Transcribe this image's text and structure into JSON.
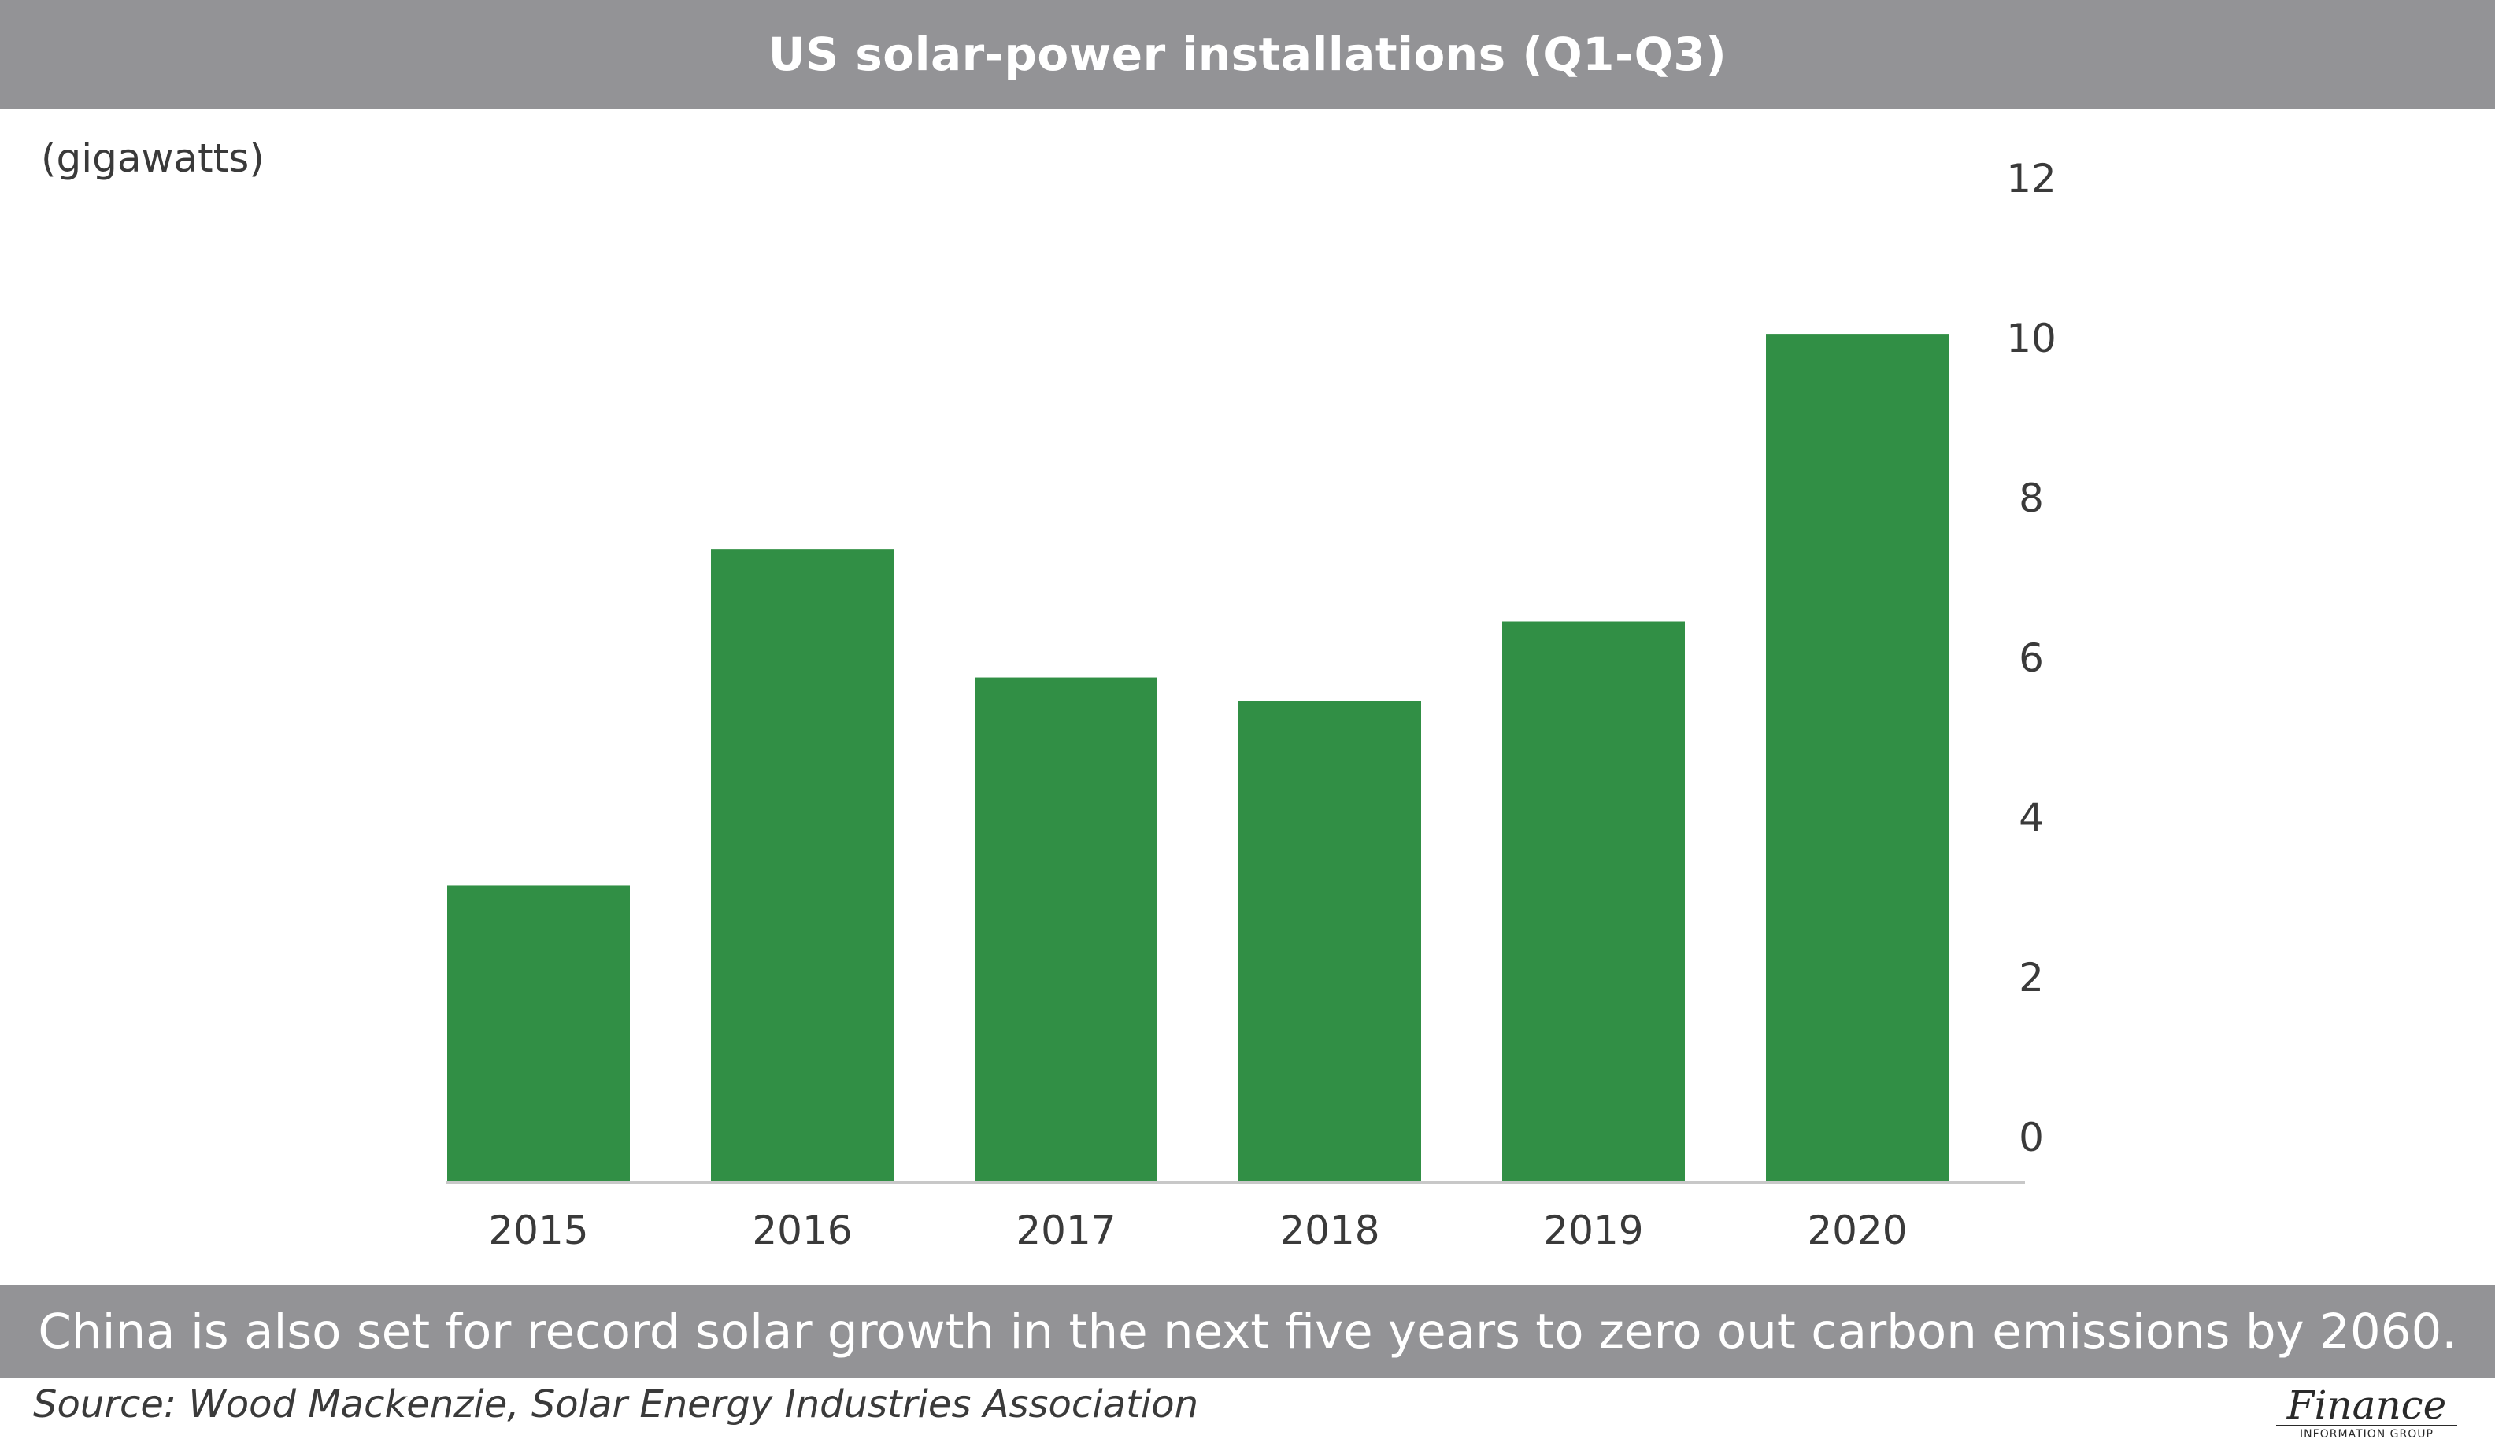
{
  "header": {
    "title": "US solar-power installations (Q1-Q3)"
  },
  "chart_data": {
    "type": "bar",
    "unit_label": "(gigawatts)",
    "categories": [
      "2015",
      "2016",
      "2017",
      "2018",
      "2019",
      "2020"
    ],
    "values": [
      3.7,
      7.9,
      6.3,
      6.0,
      7.0,
      10.6
    ],
    "ylim": [
      0,
      12
    ],
    "yticks": [
      0,
      2,
      4,
      6,
      8,
      10,
      12
    ],
    "y_axis_side": "right",
    "grid": false,
    "bar_color": "#318f45",
    "axis_color": "#c8c8c8"
  },
  "caption": {
    "text": "China is also set for record solar growth in the next five years to zero out carbon emissions by 2060."
  },
  "footer": {
    "source": "Source: Wood Mackenzie, Solar Energy Industries Association",
    "logo_main": "Finance",
    "logo_sub": "INFORMATION GROUP"
  },
  "colors": {
    "banner": "#939396",
    "text": "#3a3a3a"
  }
}
